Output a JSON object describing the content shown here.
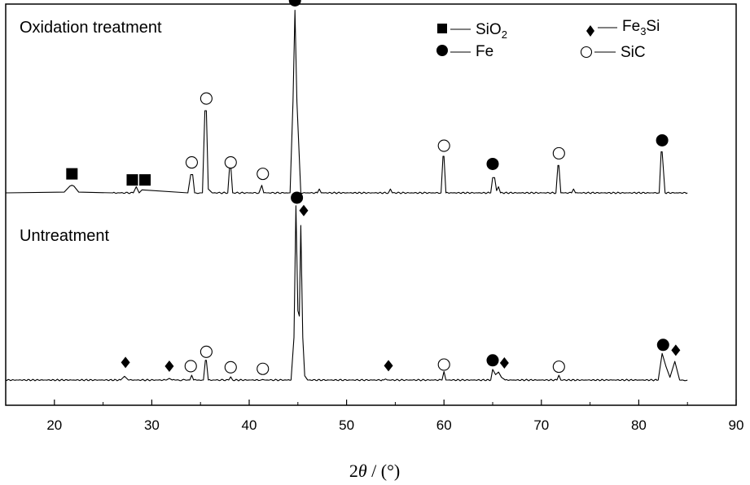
{
  "chart_data": {
    "type": "line",
    "xlabel_symbol": "2",
    "xlabel_theta": "θ",
    "xlabel_unit": " / (°)",
    "xlim": [
      15,
      90
    ],
    "xticks": [
      "20",
      "30",
      "40",
      "50",
      "60",
      "70",
      "80",
      "90"
    ],
    "legend": [
      {
        "symbol": "square",
        "label": "SiO",
        "sub": "2"
      },
      {
        "symbol": "circle",
        "label": "Fe",
        "sub": ""
      },
      {
        "symbol": "diamond",
        "label": "Fe",
        "sub": "3",
        "suffix": "Si"
      },
      {
        "symbol": "open-circle",
        "label": "SiC",
        "sub": ""
      }
    ],
    "series": [
      {
        "name": "Oxidation treatment",
        "x": [
          15.0,
          21.0,
          21.6,
          21.8,
          22.0,
          22.5,
          26.0,
          28.1,
          28.4,
          28.7,
          29.0,
          33.7,
          34.0,
          34.2,
          34.4,
          35.2,
          35.45,
          35.6,
          35.8,
          36.2,
          37.8,
          38.0,
          38.1,
          38.3,
          41.0,
          41.3,
          41.5,
          44.2,
          44.5,
          44.7,
          44.9,
          45.3,
          47.0,
          47.2,
          47.4,
          54.3,
          54.5,
          54.7,
          59.7,
          59.9,
          60.0,
          60.2,
          64.8,
          65.0,
          65.2,
          65.4,
          65.6,
          65.8,
          71.5,
          71.7,
          71.8,
          72.0,
          73.1,
          73.3,
          73.5,
          82.1,
          82.3,
          82.4,
          82.7,
          85.0
        ],
        "y": [
          0.0,
          0.1,
          0.9,
          1.0,
          0.9,
          0.1,
          0.0,
          0.0,
          0.8,
          0.0,
          0.4,
          0.0,
          2.4,
          2.4,
          0.0,
          0.0,
          10.8,
          10.8,
          0.5,
          0.0,
          0.0,
          3.7,
          3.7,
          0.0,
          0.0,
          1.0,
          0.0,
          0.0,
          12.0,
          24.0,
          12.0,
          0.0,
          0.0,
          0.5,
          0.0,
          0.0,
          0.5,
          0.0,
          0.0,
          4.8,
          4.8,
          0.0,
          0.0,
          2.0,
          2.0,
          0.3,
          0.8,
          0.0,
          0.0,
          3.6,
          3.6,
          0.0,
          0.0,
          0.5,
          0.0,
          0.0,
          5.4,
          5.4,
          0.0,
          0.0
        ],
        "markers": [
          {
            "symbol": "square",
            "x": 21.8,
            "y": 2.5
          },
          {
            "symbol": "square",
            "x": 28.0,
            "y": 1.7
          },
          {
            "symbol": "square",
            "x": 29.3,
            "y": 1.7
          },
          {
            "symbol": "open-circle",
            "x": 34.1,
            "y": 4.0
          },
          {
            "symbol": "open-circle",
            "x": 35.6,
            "y": 12.4
          },
          {
            "symbol": "open-circle",
            "x": 38.1,
            "y": 4.0
          },
          {
            "symbol": "open-circle",
            "x": 41.4,
            "y": 2.5
          },
          {
            "symbol": "circle",
            "x": 44.7,
            "y": 25.3
          },
          {
            "symbol": "open-circle",
            "x": 60.0,
            "y": 6.2
          },
          {
            "symbol": "circle",
            "x": 65.0,
            "y": 3.8
          },
          {
            "symbol": "open-circle",
            "x": 71.8,
            "y": 5.2
          },
          {
            "symbol": "circle",
            "x": 82.4,
            "y": 6.9
          }
        ]
      },
      {
        "name": "Untreatment",
        "x": [
          15.0,
          26.8,
          27.2,
          27.6,
          31.5,
          31.8,
          32.1,
          33.9,
          34.1,
          34.3,
          35.3,
          35.5,
          35.6,
          35.8,
          37.9,
          38.1,
          38.3,
          41.2,
          41.4,
          41.6,
          44.3,
          44.6,
          44.8,
          45.0,
          45.15,
          45.3,
          45.5,
          45.7,
          46.0,
          53.8,
          54.0,
          54.2,
          59.8,
          60.0,
          60.2,
          64.8,
          65.0,
          65.3,
          65.6,
          65.9,
          66.3,
          71.6,
          71.8,
          72.0,
          82.0,
          82.4,
          82.8,
          83.2,
          83.7,
          84.2,
          85.0
        ],
        "y": [
          0.0,
          0.0,
          0.7,
          0.0,
          0.0,
          0.3,
          0.0,
          0.0,
          0.9,
          0.0,
          0.0,
          3.7,
          3.7,
          0.0,
          0.0,
          0.6,
          0.0,
          0.0,
          0.1,
          0.0,
          0.0,
          8.0,
          32.7,
          13.0,
          12.0,
          29.0,
          8.0,
          0.8,
          0.0,
          0.0,
          0.2,
          0.0,
          0.0,
          1.6,
          0.0,
          0.0,
          2.0,
          1.0,
          1.5,
          0.5,
          0.0,
          0.0,
          0.9,
          0.0,
          0.0,
          5.0,
          2.5,
          0.5,
          3.5,
          0.0,
          0.0
        ],
        "markers": [
          {
            "symbol": "diamond",
            "x": 27.3,
            "y": 3.3
          },
          {
            "symbol": "diamond",
            "x": 31.8,
            "y": 2.6
          },
          {
            "symbol": "open-circle",
            "x": 34.0,
            "y": 2.6
          },
          {
            "symbol": "open-circle",
            "x": 35.6,
            "y": 5.3
          },
          {
            "symbol": "open-circle",
            "x": 38.1,
            "y": 2.4
          },
          {
            "symbol": "open-circle",
            "x": 41.4,
            "y": 2.1
          },
          {
            "symbol": "circle",
            "x": 44.9,
            "y": 34.2
          },
          {
            "symbol": "diamond",
            "x": 45.6,
            "y": 31.8
          },
          {
            "symbol": "diamond",
            "x": 54.3,
            "y": 2.7
          },
          {
            "symbol": "open-circle",
            "x": 60.0,
            "y": 2.9
          },
          {
            "symbol": "circle",
            "x": 65.0,
            "y": 3.7
          },
          {
            "symbol": "diamond",
            "x": 66.2,
            "y": 3.2
          },
          {
            "symbol": "open-circle",
            "x": 71.8,
            "y": 2.5
          },
          {
            "symbol": "circle",
            "x": 82.5,
            "y": 6.6
          },
          {
            "symbol": "diamond",
            "x": 83.8,
            "y": 5.6
          }
        ]
      }
    ],
    "grid": false,
    "legend_position": "top-right"
  }
}
